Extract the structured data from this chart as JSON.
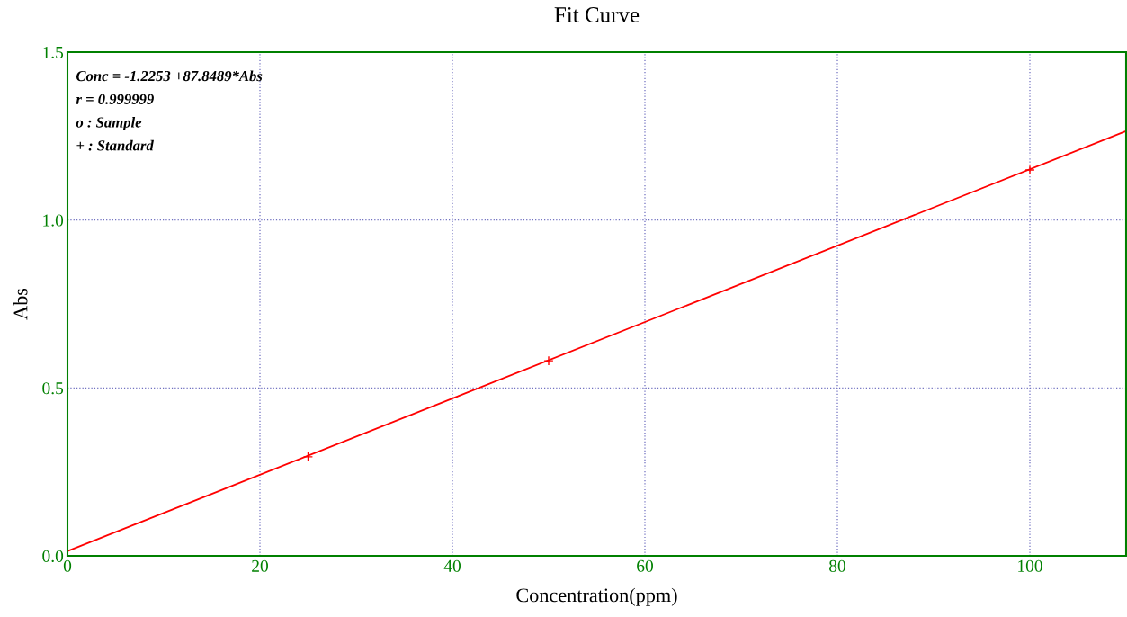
{
  "chart_data": {
    "type": "scatter",
    "title": "Fit Curve",
    "xlabel": "Concentration(ppm)",
    "ylabel": "Abs",
    "annotations": [
      "Conc = -1.2253 +87.8489*Abs",
      "r = 0.999999",
      "o : Sample",
      "+ : Standard"
    ],
    "series": [
      {
        "color": "#ff0000",
        "marker": "cross",
        "x": [
          25,
          50,
          100
        ],
        "values": [
          0.295,
          0.581,
          1.149
        ]
      },
      {
        "type": "line",
        "color": "#ff0000",
        "marker": "none",
        "line_style": "solid",
        "x": [
          0,
          110
        ],
        "values": [
          0.014,
          1.265
        ]
      }
    ],
    "xlim": [
      0,
      110
    ],
    "xticks": [
      0,
      20,
      40,
      60,
      80,
      100
    ],
    "ylim": [
      0,
      1.5
    ],
    "yticks": [
      {
        "value": 0,
        "label": "0.0"
      },
      {
        "value": 0.5,
        "label": "0.5"
      },
      {
        "value": 1,
        "label": "1.0"
      },
      {
        "value": 1.5,
        "label": "1.5"
      }
    ],
    "grid": true,
    "legend": false
  }
}
